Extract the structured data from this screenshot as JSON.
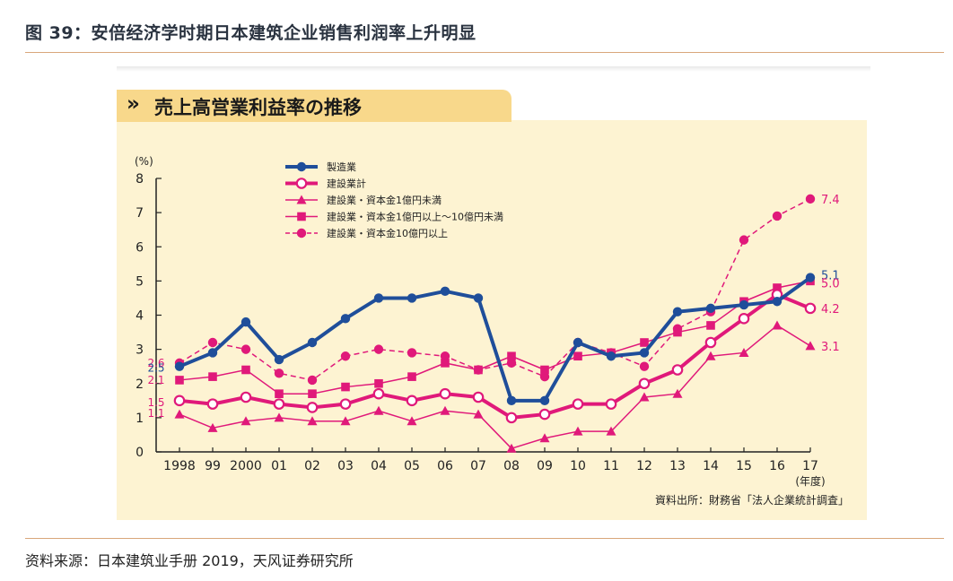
{
  "figure": {
    "title": "图 39：安倍经济学时期日本建筑企业销售利润率上升明显",
    "panel_title": "売上高営業利益率の推移",
    "tab_arrow": "»",
    "source_note": "资料来源：日本建筑业手册 2019，天风证券研究所"
  },
  "chart_data": {
    "type": "line",
    "title": "売上高営業利益率の推移",
    "y_unit_label": "(%)",
    "x_unit_label": "(年度)",
    "categories": [
      "1998",
      "99",
      "2000",
      "01",
      "02",
      "03",
      "04",
      "05",
      "06",
      "07",
      "08",
      "09",
      "10",
      "11",
      "12",
      "13",
      "14",
      "15",
      "16",
      "17"
    ],
    "ylim": [
      0,
      8
    ],
    "yticks": [
      0,
      1,
      2,
      3,
      4,
      5,
      6,
      7,
      8
    ],
    "grid": false,
    "legend_position": "top-left",
    "series": [
      {
        "name": "製造業",
        "color": "#1f4e9a",
        "style": "solid",
        "marker": "filled-circle",
        "width": 4,
        "values": [
          2.5,
          2.9,
          3.8,
          2.7,
          3.2,
          3.9,
          4.5,
          4.5,
          4.7,
          4.5,
          1.5,
          1.5,
          3.2,
          2.8,
          2.9,
          4.1,
          4.2,
          4.3,
          4.4,
          5.1
        ]
      },
      {
        "name": "建設業計",
        "color": "#e0197a",
        "style": "solid",
        "marker": "open-circle",
        "width": 4,
        "values": [
          1.5,
          1.4,
          1.6,
          1.4,
          1.3,
          1.4,
          1.7,
          1.5,
          1.7,
          1.6,
          1.0,
          1.1,
          1.4,
          1.4,
          2.0,
          2.4,
          3.2,
          3.9,
          4.6,
          4.2
        ]
      },
      {
        "name": "建設業・資本金1億円未満",
        "color": "#e0197a",
        "style": "solid",
        "marker": "triangle",
        "width": 1.5,
        "values": [
          1.1,
          0.7,
          0.9,
          1.0,
          0.9,
          0.9,
          1.2,
          0.9,
          1.2,
          1.1,
          0.1,
          0.4,
          0.6,
          0.6,
          1.6,
          1.7,
          2.8,
          2.9,
          3.7,
          3.1
        ]
      },
      {
        "name": "建設業・資本金1億円以上～10億円未満",
        "color": "#e0197a",
        "style": "solid",
        "marker": "square",
        "width": 1.5,
        "values": [
          2.1,
          2.2,
          2.4,
          1.7,
          1.7,
          1.9,
          2.0,
          2.2,
          2.6,
          2.4,
          2.8,
          2.4,
          2.8,
          2.9,
          3.2,
          3.5,
          3.7,
          4.4,
          4.8,
          5.0
        ]
      },
      {
        "name": "建設業・資本金10億円以上",
        "color": "#e0197a",
        "style": "dashed",
        "marker": "filled-circle",
        "width": 1.5,
        "values": [
          2.6,
          3.2,
          3.0,
          2.3,
          2.1,
          2.8,
          3.0,
          2.9,
          2.8,
          2.4,
          2.6,
          2.2,
          3.2,
          2.9,
          2.5,
          3.6,
          4.1,
          6.2,
          6.9,
          7.4
        ]
      }
    ],
    "start_labels": [
      {
        "text": "2.6",
        "color": "#e0197a",
        "value": 2.6
      },
      {
        "text": "2.5",
        "color": "#1f4e9a",
        "value": 2.5
      },
      {
        "text": "2.1",
        "color": "#e0197a",
        "value": 2.1
      },
      {
        "text": "1.5",
        "color": "#e0197a",
        "value": 1.5
      },
      {
        "text": "1.1",
        "color": "#e0197a",
        "value": 1.1
      }
    ],
    "end_labels": [
      {
        "text": "7.4",
        "color": "#e0197a",
        "value": 7.4
      },
      {
        "text": "5.1",
        "color": "#1f4e9a",
        "value": 5.1
      },
      {
        "text": "5.0",
        "color": "#e0197a",
        "value": 5.0
      },
      {
        "text": "4.2",
        "color": "#e0197a",
        "value": 4.2
      },
      {
        "text": "3.1",
        "color": "#e0197a",
        "value": 3.1
      }
    ],
    "source": "資料出所：財務省「法人企業統計調査」"
  }
}
